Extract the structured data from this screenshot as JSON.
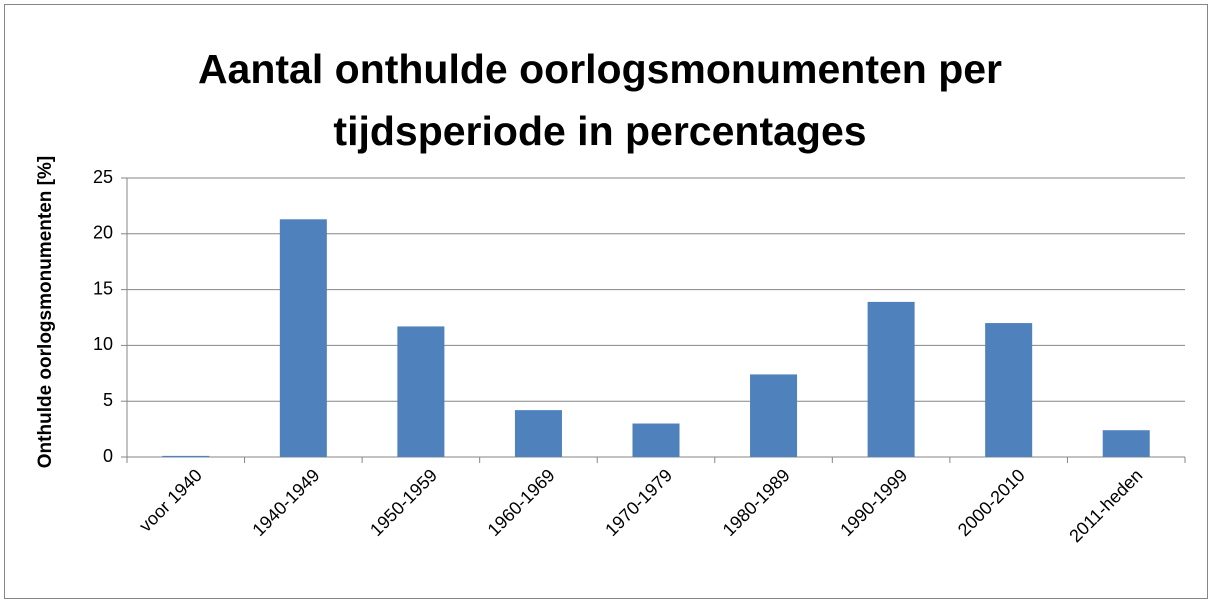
{
  "chart_data": {
    "type": "bar",
    "title": "Aantal onthulde oorlogsmonumenten per tijdsperiode in percentages",
    "y_label": "Onthulde oorlogsmonumenten [%]",
    "categories": [
      "voor 1940",
      "1940-1949",
      "1950-1959",
      "1960-1969",
      "1970-1979",
      "1980-1989",
      "1990-1999",
      "2000-2010",
      "2011-heden"
    ],
    "values": [
      0.1,
      21.3,
      11.7,
      4.2,
      3.0,
      7.4,
      13.9,
      12.0,
      2.4
    ],
    "color": "#4f81bd",
    "ylim": [
      0,
      25
    ],
    "yticks": [
      0,
      5,
      10,
      15,
      20,
      25
    ],
    "grid": true
  }
}
